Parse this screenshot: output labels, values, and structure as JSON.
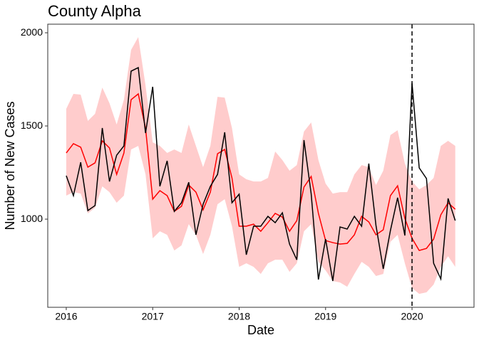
{
  "chart_data": {
    "type": "line",
    "title": "County Alpha",
    "x_label": "Date",
    "y_label": "Number of New Cases",
    "x": [
      2016,
      2016.083,
      2016.167,
      2016.25,
      2016.333,
      2016.417,
      2016.5,
      2016.583,
      2016.667,
      2016.75,
      2016.833,
      2016.917,
      2017,
      2017.083,
      2017.167,
      2017.25,
      2017.333,
      2017.417,
      2017.5,
      2017.583,
      2017.667,
      2017.75,
      2017.833,
      2017.917,
      2018,
      2018.083,
      2018.167,
      2018.25,
      2018.333,
      2018.417,
      2018.5,
      2018.583,
      2018.667,
      2018.75,
      2018.833,
      2018.917,
      2019,
      2019.083,
      2019.167,
      2019.25,
      2019.333,
      2019.417,
      2019.5,
      2019.583,
      2019.667,
      2019.75,
      2019.833,
      2019.917,
      2020,
      2020.083,
      2020.167,
      2020.25,
      2020.333,
      2020.417,
      2020.5
    ],
    "band": {
      "color": "#ffcccc",
      "upper": [
        1592,
        1672,
        1668,
        1527,
        1565,
        1706,
        1622,
        1508,
        1641,
        1908,
        1977,
        1718,
        1412,
        1393,
        1355,
        1374,
        1355,
        1508,
        1393,
        1279,
        1393,
        1656,
        1652,
        1489,
        1240,
        1214,
        1202,
        1202,
        1221,
        1363,
        1317,
        1260,
        1290,
        1470,
        1519,
        1317,
        1191,
        1137,
        1145,
        1145,
        1240,
        1290,
        1279,
        1183,
        1260,
        1451,
        1477,
        1298,
        1202,
        1160,
        1183,
        1221,
        1393,
        1420,
        1393
      ],
      "lower": [
        1126,
        1145,
        1137,
        1031,
        1061,
        1176,
        1145,
        1088,
        1126,
        1374,
        1393,
        1240,
        897,
        935,
        916,
        832,
        859,
        973,
        916,
        813,
        916,
        1080,
        1107,
        962,
        744,
        763,
        744,
        706,
        763,
        782,
        782,
        717,
        763,
        935,
        973,
        771,
        725,
        668,
        660,
        637,
        706,
        771,
        744,
        695,
        706,
        878,
        916,
        763,
        630,
        599,
        607,
        649,
        744,
        801,
        744
      ]
    },
    "series": [
      {
        "color": "#ff0000",
        "values": [
          1355,
          1405,
          1386,
          1279,
          1302,
          1420,
          1382,
          1240,
          1355,
          1641,
          1672,
          1489,
          1107,
          1153,
          1126,
          1042,
          1069,
          1183,
          1145,
          1050,
          1145,
          1351,
          1374,
          1221,
          962,
          962,
          973,
          935,
          981,
          1031,
          1011,
          935,
          992,
          1172,
          1229,
          1031,
          885,
          874,
          866,
          870,
          916,
          1015,
          985,
          916,
          943,
          1126,
          1179,
          1004,
          897,
          832,
          843,
          893,
          1023,
          1088,
          1053
        ]
      },
      {
        "color": "#000000",
        "values": [
          1233,
          1126,
          1305,
          1046,
          1073,
          1489,
          1202,
          1343,
          1393,
          1794,
          1813,
          1462,
          1710,
          1176,
          1313,
          1042,
          1088,
          1198,
          916,
          1080,
          1176,
          1240,
          1466,
          1088,
          1134,
          809,
          962,
          962,
          1015,
          981,
          1034,
          866,
          782,
          1424,
          1137,
          676,
          893,
          668,
          958,
          947,
          1015,
          962,
          1298,
          966,
          733,
          939,
          1115,
          912,
          1729,
          1275,
          1218,
          763,
          679,
          1111,
          992
        ]
      }
    ],
    "vline": 2020,
    "xlim": [
      2015.786,
      2020.717
    ],
    "xticks": [
      2016,
      2017,
      2018,
      2019,
      2020
    ],
    "ylim": [
      527,
      2046
    ],
    "yticks": [
      1000,
      1500,
      2000
    ]
  }
}
